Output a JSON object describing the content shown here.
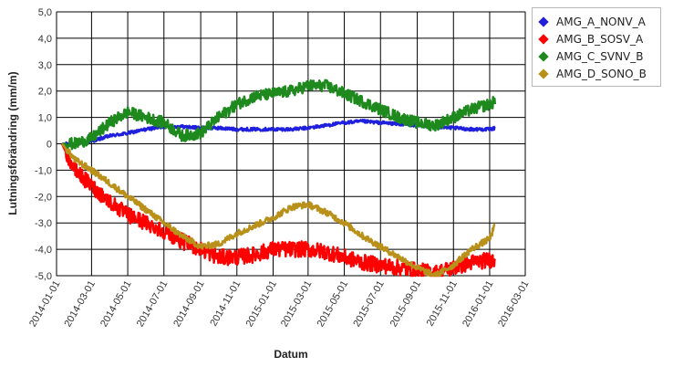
{
  "chart_data": {
    "type": "line",
    "ylabel": "Lutningsförändring (mm/m)",
    "xlabel": "Datum",
    "ylim": [
      -5.0,
      5.0
    ],
    "yticks": [
      5.0,
      4.0,
      3.0,
      2.0,
      1.0,
      0,
      -1.0,
      -2.0,
      -3.0,
      -4.0,
      -5.0
    ],
    "ytick_labels": [
      "5,0",
      "4,0",
      "3,0",
      "2,0",
      "1,0",
      "0",
      "-1,0",
      "-2,0",
      "-3,0",
      "-4,0",
      "-5,0"
    ],
    "xlim": [
      "2014-01-01",
      "2016-03-01"
    ],
    "xtick_labels": [
      "2014-01-01",
      "2014-03-01",
      "2014-05-01",
      "2014-07-01",
      "2014-09-01",
      "2014-11-01",
      "2015-01-01",
      "2015-03-01",
      "2015-05-01",
      "2015-07-01",
      "2015-09-01",
      "2015-11-01",
      "2016-01-01",
      "2016-03-01"
    ],
    "grid": true,
    "legend_position": "right",
    "series": [
      {
        "name": "AMG_A_NONV_A",
        "color": "#1f1fdd",
        "noise": 0.06,
        "points": [
          [
            "2014-01-10",
            0.0
          ],
          [
            "2014-02-01",
            0.0
          ],
          [
            "2014-03-01",
            0.1
          ],
          [
            "2014-04-01",
            0.3
          ],
          [
            "2014-05-01",
            0.4
          ],
          [
            "2014-06-01",
            0.55
          ],
          [
            "2014-07-01",
            0.65
          ],
          [
            "2014-08-01",
            0.65
          ],
          [
            "2014-09-01",
            0.6
          ],
          [
            "2014-10-01",
            0.6
          ],
          [
            "2014-11-01",
            0.55
          ],
          [
            "2014-12-01",
            0.55
          ],
          [
            "2015-01-01",
            0.55
          ],
          [
            "2015-02-01",
            0.55
          ],
          [
            "2015-03-01",
            0.6
          ],
          [
            "2015-04-01",
            0.7
          ],
          [
            "2015-05-01",
            0.8
          ],
          [
            "2015-06-01",
            0.85
          ],
          [
            "2015-07-01",
            0.8
          ],
          [
            "2015-08-01",
            0.75
          ],
          [
            "2015-09-01",
            0.7
          ],
          [
            "2015-10-01",
            0.65
          ],
          [
            "2015-11-01",
            0.6
          ],
          [
            "2015-12-01",
            0.55
          ],
          [
            "2016-01-01",
            0.55
          ],
          [
            "2016-01-10",
            0.6
          ]
        ]
      },
      {
        "name": "AMG_B_SOSV_A",
        "color": "#ff0000",
        "noise": 0.3,
        "points": [
          [
            "2014-01-10",
            0.0
          ],
          [
            "2014-02-01",
            -1.0
          ],
          [
            "2014-03-01",
            -1.6
          ],
          [
            "2014-04-01",
            -2.2
          ],
          [
            "2014-05-01",
            -2.7
          ],
          [
            "2014-06-01",
            -3.0
          ],
          [
            "2014-07-01",
            -3.3
          ],
          [
            "2014-08-01",
            -3.7
          ],
          [
            "2014-09-01",
            -4.0
          ],
          [
            "2014-10-01",
            -4.3
          ],
          [
            "2014-11-01",
            -4.3
          ],
          [
            "2014-12-01",
            -4.2
          ],
          [
            "2015-01-01",
            -4.0
          ],
          [
            "2015-02-01",
            -4.0
          ],
          [
            "2015-03-01",
            -4.0
          ],
          [
            "2015-04-01",
            -4.1
          ],
          [
            "2015-05-01",
            -4.3
          ],
          [
            "2015-06-01",
            -4.5
          ],
          [
            "2015-07-01",
            -4.6
          ],
          [
            "2015-08-01",
            -4.7
          ],
          [
            "2015-09-01",
            -4.8
          ],
          [
            "2015-10-01",
            -4.9
          ],
          [
            "2015-11-01",
            -4.7
          ],
          [
            "2015-12-01",
            -4.5
          ],
          [
            "2016-01-01",
            -4.4
          ],
          [
            "2016-01-10",
            -4.4
          ]
        ]
      },
      {
        "name": "AMG_C_SVNV_B",
        "color": "#1e8a1e",
        "noise": 0.22,
        "points": [
          [
            "2014-01-10",
            0.0
          ],
          [
            "2014-02-01",
            0.0
          ],
          [
            "2014-03-01",
            0.2
          ],
          [
            "2014-04-01",
            0.8
          ],
          [
            "2014-05-01",
            1.2
          ],
          [
            "2014-06-01",
            1.0
          ],
          [
            "2014-07-01",
            0.8
          ],
          [
            "2014-08-01",
            0.3
          ],
          [
            "2014-09-01",
            0.4
          ],
          [
            "2014-10-01",
            1.0
          ],
          [
            "2014-11-01",
            1.5
          ],
          [
            "2014-12-01",
            1.8
          ],
          [
            "2015-01-01",
            1.9
          ],
          [
            "2015-02-01",
            2.0
          ],
          [
            "2015-03-01",
            2.2
          ],
          [
            "2015-04-01",
            2.2
          ],
          [
            "2015-05-01",
            1.9
          ],
          [
            "2015-06-01",
            1.6
          ],
          [
            "2015-07-01",
            1.3
          ],
          [
            "2015-08-01",
            1.0
          ],
          [
            "2015-09-01",
            0.8
          ],
          [
            "2015-10-01",
            0.7
          ],
          [
            "2015-11-01",
            1.0
          ],
          [
            "2015-12-01",
            1.3
          ],
          [
            "2016-01-01",
            1.5
          ],
          [
            "2016-01-10",
            1.6
          ]
        ]
      },
      {
        "name": "AMG_D_SONO_B",
        "color": "#b8901a",
        "noise": 0.12,
        "points": [
          [
            "2014-01-10",
            0.0
          ],
          [
            "2014-02-01",
            -0.6
          ],
          [
            "2014-03-01",
            -1.0
          ],
          [
            "2014-04-01",
            -1.5
          ],
          [
            "2014-05-01",
            -2.0
          ],
          [
            "2014-06-01",
            -2.5
          ],
          [
            "2014-07-01",
            -3.0
          ],
          [
            "2014-08-01",
            -3.5
          ],
          [
            "2014-09-01",
            -3.9
          ],
          [
            "2014-10-01",
            -3.8
          ],
          [
            "2014-11-01",
            -3.4
          ],
          [
            "2014-12-01",
            -3.1
          ],
          [
            "2015-01-01",
            -2.8
          ],
          [
            "2015-02-01",
            -2.4
          ],
          [
            "2015-03-01",
            -2.3
          ],
          [
            "2015-04-01",
            -2.6
          ],
          [
            "2015-05-01",
            -3.0
          ],
          [
            "2015-06-01",
            -3.5
          ],
          [
            "2015-07-01",
            -3.9
          ],
          [
            "2015-08-01",
            -4.3
          ],
          [
            "2015-09-01",
            -4.7
          ],
          [
            "2015-10-01",
            -5.0
          ],
          [
            "2015-11-01",
            -4.6
          ],
          [
            "2015-12-01",
            -4.0
          ],
          [
            "2016-01-01",
            -3.6
          ],
          [
            "2016-01-10",
            -3.1
          ]
        ]
      }
    ]
  }
}
